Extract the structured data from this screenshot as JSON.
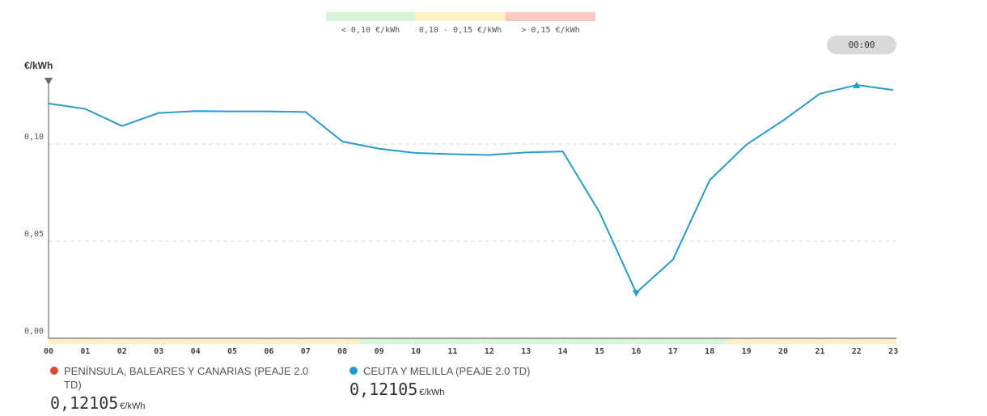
{
  "legend": {
    "items": [
      {
        "label": "< 0,10 €/kWh",
        "color": "#d8f5d8"
      },
      {
        "label": "0,10 - 0,15 €/kWh",
        "color": "#fdf0c4"
      },
      {
        "label": "> 0,15 €/kWh",
        "color": "#f9c9c4"
      }
    ]
  },
  "time_pill": "00:00",
  "chart_data": {
    "type": "line",
    "ylabel": "€/kWh",
    "ylim": [
      0,
      0.1325
    ],
    "yticks": [
      {
        "value": 0.0,
        "label": "0,00"
      },
      {
        "value": 0.05,
        "label": "0,05"
      },
      {
        "value": 0.1,
        "label": "0,10"
      }
    ],
    "categories": [
      "00",
      "01",
      "02",
      "03",
      "04",
      "05",
      "06",
      "07",
      "08",
      "09",
      "10",
      "11",
      "12",
      "13",
      "14",
      "15",
      "16",
      "17",
      "18",
      "19",
      "20",
      "21",
      "22",
      "23"
    ],
    "series": [
      {
        "color": "#2a9ac8",
        "values": [
          0.1209,
          0.1181,
          0.1093,
          0.116,
          0.117,
          0.1168,
          0.1168,
          0.1165,
          0.1013,
          0.0976,
          0.0954,
          0.0948,
          0.0944,
          0.0957,
          0.0962,
          0.0649,
          0.0235,
          0.0405,
          0.0814,
          0.0997,
          0.1121,
          0.1259,
          0.1304,
          0.1278
        ]
      }
    ],
    "min_marker": {
      "category": "16",
      "value": 0.0235
    },
    "max_marker": {
      "category": "22",
      "value": 0.1304
    },
    "band_colors": [
      "#fdf0c4",
      "#fdf0c4",
      "#fdf0c4",
      "#fdf0c4",
      "#fdf0c4",
      "#fdf0c4",
      "#fdf0c4",
      "#fdf0c4",
      "#fdf0c4",
      "#d8f5d8",
      "#d8f5d8",
      "#d8f5d8",
      "#d8f5d8",
      "#d8f5d8",
      "#d8f5d8",
      "#d8f5d8",
      "#d8f5d8",
      "#d8f5d8",
      "#d8f5d8",
      "#fdf0c4",
      "#fdf0c4",
      "#fdf0c4",
      "#fdf0c4",
      "#fdf0c4"
    ],
    "grid": true
  },
  "prices": [
    {
      "region": "PENÍNSULA, BALEARES Y CANARIAS (PEAJE 2.0 TD)",
      "value": "0,12105",
      "unit": "€/kWh",
      "color": "#e04a2f"
    },
    {
      "region": "CEUTA Y MELILLA (PEAJE 2.0 TD)",
      "value": "0,12105",
      "unit": "€/kWh",
      "color": "#1a9bd7"
    }
  ]
}
